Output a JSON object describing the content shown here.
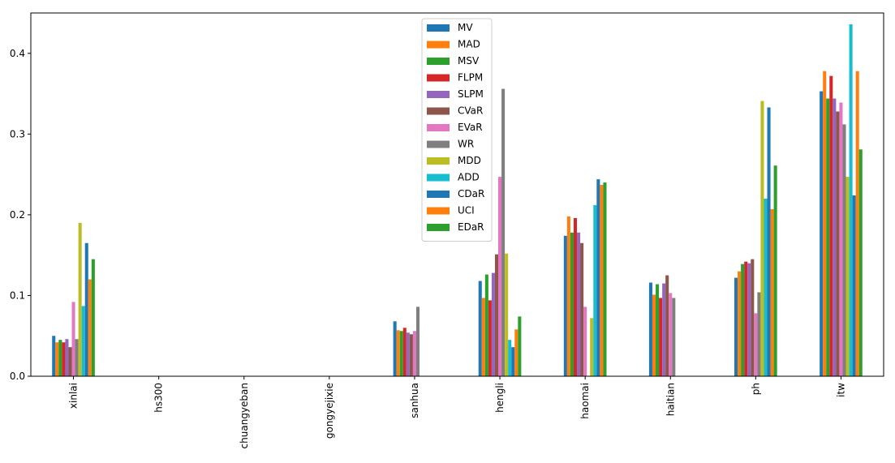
{
  "chart_data": {
    "type": "bar",
    "title": "",
    "xlabel": "",
    "ylabel": "",
    "ylim": [
      0,
      0.45
    ],
    "yticks": [
      0.0,
      0.1,
      0.2,
      0.3,
      0.4
    ],
    "ytick_labels": [
      "0.0",
      "0.1",
      "0.2",
      "0.3",
      "0.4"
    ],
    "legend_position": "top-center",
    "categories": [
      "xinlai",
      "hs300",
      "chuangyeban",
      "gongyejixie",
      "sanhua",
      "hengli",
      "haomai",
      "haitian",
      "ph",
      "itw"
    ],
    "series": [
      {
        "name": "MV",
        "color": "#1f77b4",
        "values": [
          0.05,
          0,
          0,
          0,
          0.068,
          0.118,
          0.174,
          0.116,
          0.122,
          0.353
        ]
      },
      {
        "name": "MAD",
        "color": "#ff7f0e",
        "values": [
          0.042,
          0,
          0,
          0,
          0.057,
          0.097,
          0.198,
          0.101,
          0.13,
          0.378
        ]
      },
      {
        "name": "MSV",
        "color": "#2ca02c",
        "values": [
          0.045,
          0,
          0,
          0,
          0.056,
          0.126,
          0.178,
          0.114,
          0.139,
          0.344
        ]
      },
      {
        "name": "FLPM",
        "color": "#d62728",
        "values": [
          0.042,
          0,
          0,
          0,
          0.06,
          0.094,
          0.196,
          0.097,
          0.142,
          0.372
        ]
      },
      {
        "name": "SLPM",
        "color": "#9467bd",
        "values": [
          0.046,
          0,
          0,
          0,
          0.054,
          0.128,
          0.178,
          0.115,
          0.14,
          0.344
        ]
      },
      {
        "name": "CVaR",
        "color": "#8c564b",
        "values": [
          0.036,
          0,
          0,
          0,
          0.052,
          0.151,
          0.165,
          0.125,
          0.145,
          0.328
        ]
      },
      {
        "name": "EVaR",
        "color": "#e377c2",
        "values": [
          0.092,
          0,
          0,
          0,
          0.056,
          0.247,
          0.086,
          0.103,
          0.078,
          0.339
        ]
      },
      {
        "name": "WR",
        "color": "#7f7f7f",
        "values": [
          0.046,
          0,
          0,
          0,
          0.086,
          0.356,
          0,
          0.097,
          0.104,
          0.312
        ]
      },
      {
        "name": "MDD",
        "color": "#bcbd22",
        "values": [
          0.19,
          0,
          0,
          0,
          0,
          0.152,
          0.072,
          0,
          0.341,
          0.247
        ]
      },
      {
        "name": "ADD",
        "color": "#17becf",
        "values": [
          0.087,
          0,
          0,
          0,
          0,
          0.045,
          0.212,
          0,
          0.22,
          0.436
        ]
      },
      {
        "name": "CDaR",
        "color": "#1f77b4",
        "values": [
          0.165,
          0,
          0,
          0,
          0,
          0.036,
          0.244,
          0,
          0.333,
          0.224
        ]
      },
      {
        "name": "UCI",
        "color": "#ff7f0e",
        "values": [
          0.12,
          0,
          0,
          0,
          0,
          0.058,
          0.237,
          0,
          0.207,
          0.378
        ]
      },
      {
        "name": "EDaR",
        "color": "#2ca02c",
        "values": [
          0.145,
          0,
          0,
          0,
          0,
          0.074,
          0.24,
          0,
          0.261,
          0.281
        ]
      }
    ]
  }
}
